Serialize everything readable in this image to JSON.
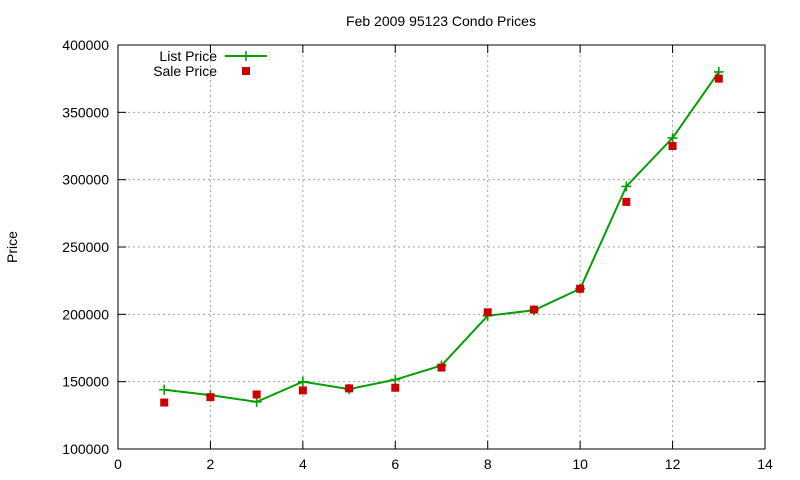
{
  "chart_data": {
    "type": "line",
    "title": "Feb 2009 95123 Condo Prices",
    "xlabel": "",
    "ylabel": "Price",
    "xlim": [
      0,
      14
    ],
    "ylim": [
      100000,
      400000
    ],
    "xticks": [
      0,
      2,
      4,
      6,
      8,
      10,
      12,
      14
    ],
    "yticks": [
      100000,
      150000,
      200000,
      250000,
      300000,
      350000,
      400000
    ],
    "grid": true,
    "legend_position": "top-left",
    "series": [
      {
        "name": "List Price",
        "style": "line-with-plus-markers",
        "color": "#00a000",
        "x": [
          1,
          2,
          3,
          4,
          5,
          6,
          7,
          8,
          9,
          10,
          11,
          12,
          13
        ],
        "y": [
          144000,
          140000,
          135000,
          150000,
          144500,
          151500,
          162000,
          199000,
          203000,
          219000,
          295000,
          331000,
          380000
        ]
      },
      {
        "name": "Sale Price",
        "style": "square-markers",
        "color": "#cc0000",
        "x": [
          1,
          2,
          3,
          4,
          5,
          6,
          7,
          8,
          9,
          10,
          11,
          12,
          13
        ],
        "y": [
          134500,
          138500,
          140500,
          143500,
          145000,
          145500,
          160500,
          201500,
          203500,
          219000,
          283500,
          325000,
          375000
        ]
      }
    ]
  }
}
